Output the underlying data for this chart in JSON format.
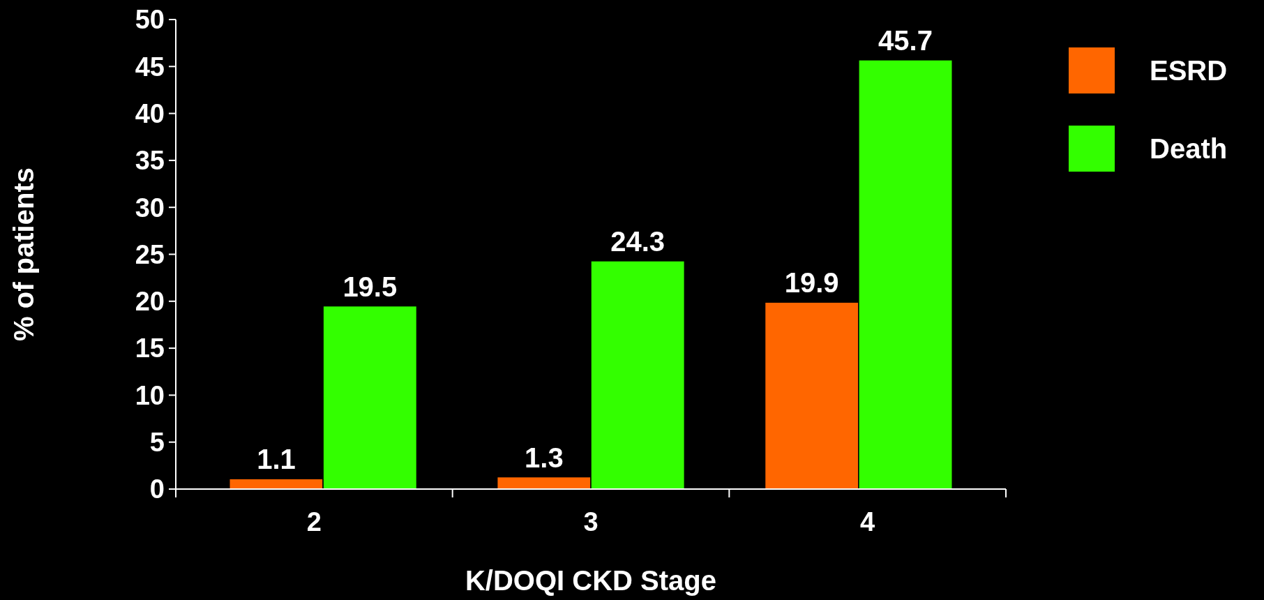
{
  "chart_data": {
    "type": "bar",
    "xlabel": "K/DOQI CKD Stage",
    "ylabel": "% of patients",
    "categories": [
      "2",
      "3",
      "4"
    ],
    "series": [
      {
        "name": "ESRD",
        "color": "#ff6600",
        "values": [
          1.1,
          1.3,
          19.9
        ]
      },
      {
        "name": "Death",
        "color": "#33ff00",
        "values": [
          19.5,
          24.3,
          45.7
        ]
      }
    ],
    "ylim": [
      0,
      50
    ],
    "yticks": [
      0,
      5,
      10,
      15,
      20,
      25,
      30,
      35,
      40,
      45,
      50
    ],
    "data_labels": true,
    "legend": "top right",
    "grid": false
  }
}
